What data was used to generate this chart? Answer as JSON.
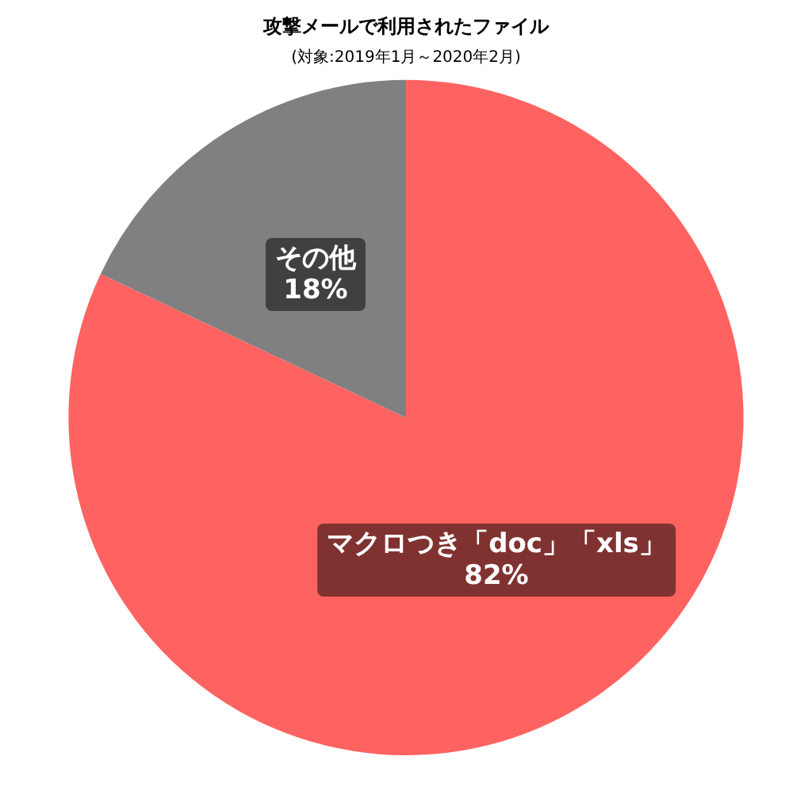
{
  "chart_data": {
    "type": "pie",
    "title": "攻撃メールで利用されたファイル",
    "subtitle": "(対象:2019年1月～2020年2月)",
    "categories": [
      "マクロつき「doc」「xls」",
      "その他"
    ],
    "values": [
      82,
      18
    ],
    "value_labels": [
      "82%",
      "18%"
    ],
    "colors": [
      "#ff6361",
      "#808080"
    ],
    "legend": false
  }
}
